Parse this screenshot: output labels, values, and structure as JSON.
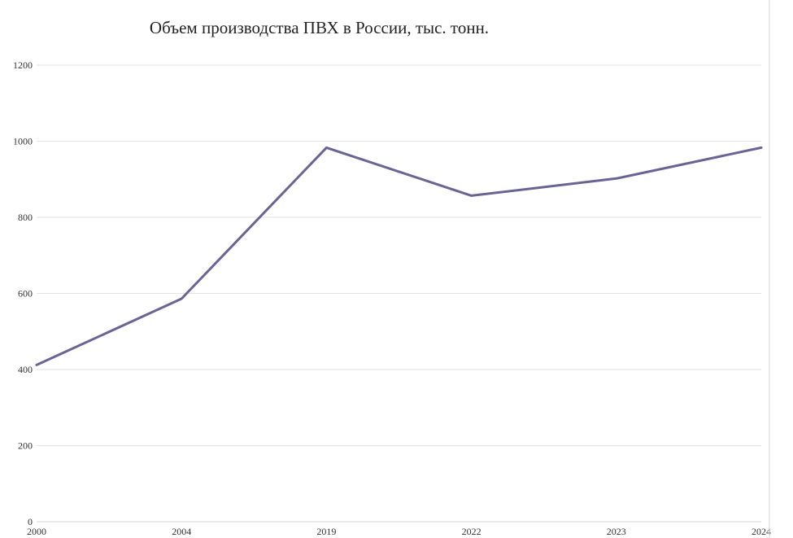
{
  "chart_data": {
    "type": "line",
    "title": "Объем производства ПВХ в России, тыс. тонн.",
    "xlabel": "",
    "ylabel": "",
    "categories": [
      "2000",
      "2004",
      "2019",
      "2022",
      "2023",
      "2024"
    ],
    "series": [
      {
        "name": "Объем производства ПВХ",
        "values": [
          412,
          586,
          983,
          857,
          902,
          983
        ],
        "color": "#6a6494"
      }
    ],
    "ylim": [
      0,
      1200
    ],
    "yticks": [
      "0",
      "200",
      "400",
      "600",
      "800",
      "1000",
      "1200"
    ],
    "grid": true,
    "legend": "none"
  }
}
